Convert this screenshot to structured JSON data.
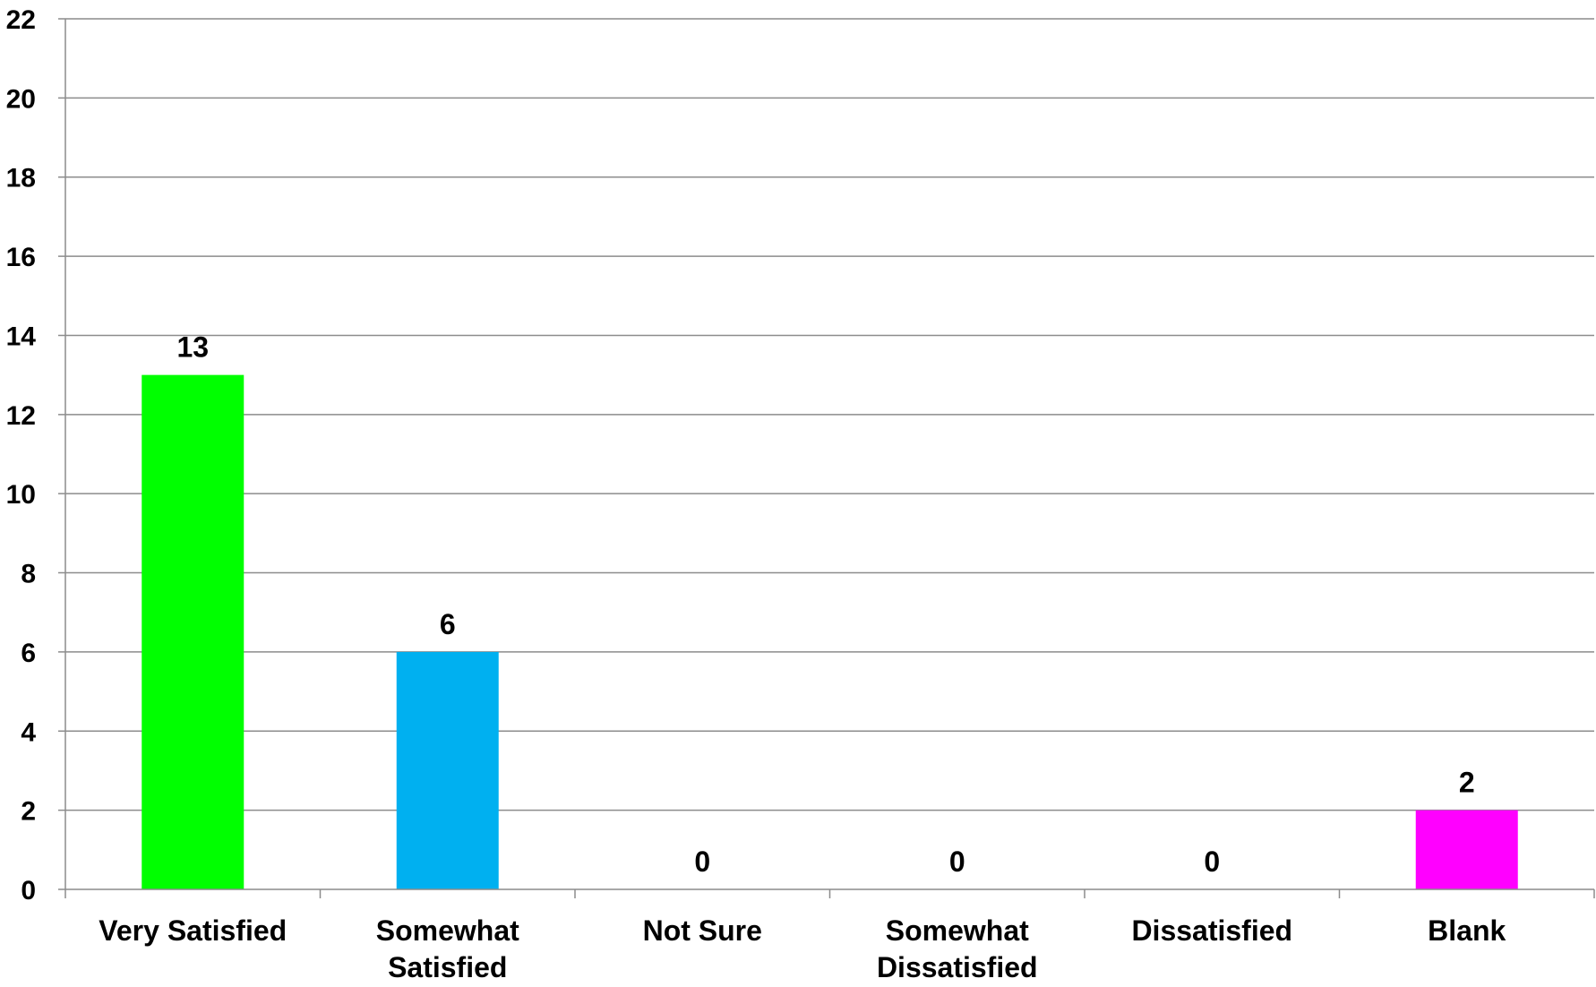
{
  "chart_data": {
    "type": "bar",
    "title": "",
    "xlabel": "",
    "ylabel": "",
    "categories": [
      [
        "Very Satisfied"
      ],
      [
        "Somewhat",
        "Satisfied"
      ],
      [
        "Not Sure"
      ],
      [
        "Somewhat",
        "Dissatisfied"
      ],
      [
        "Dissatisfied"
      ],
      [
        "Blank"
      ]
    ],
    "values": [
      13,
      6,
      0,
      0,
      0,
      2
    ],
    "bar_colors": [
      "#00ff00",
      "#00b0f0",
      "#00b0f0",
      "#00b0f0",
      "#00b0f0",
      "#ff00ff"
    ],
    "ylim": [
      0,
      22
    ],
    "yticks": [
      0,
      2,
      4,
      6,
      8,
      10,
      12,
      14,
      16,
      18,
      20,
      22
    ],
    "grid": true,
    "legend": "none",
    "data_labels": true
  },
  "style": {
    "gridline_color": "#8c8c8c",
    "axis_color": "#8c8c8c",
    "text_color": "#000000"
  }
}
